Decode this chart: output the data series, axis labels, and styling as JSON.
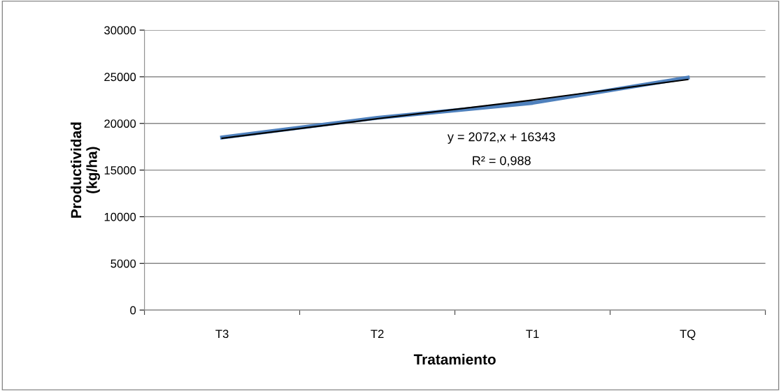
{
  "chart_data": {
    "type": "line",
    "xlabel": "Tratamiento",
    "ylabel": "Productividad\n(kg/ha)",
    "categories": [
      "T3",
      "T2",
      "T1",
      "TQ"
    ],
    "series": [
      {
        "color": "#4f81bd",
        "values": [
          18500,
          20600,
          22200,
          24900
        ]
      },
      {
        "color": "#000000",
        "values": [
          18400,
          20500,
          22500,
          24700
        ]
      }
    ],
    "ylim": [
      0,
      30000
    ],
    "yticks": [
      0,
      5000,
      10000,
      15000,
      20000,
      25000,
      30000
    ],
    "grid": "y",
    "marker": "none",
    "line_style": "solid",
    "annotations": [
      "y = 2072,x + 16343",
      "R² = 0,988"
    ]
  }
}
